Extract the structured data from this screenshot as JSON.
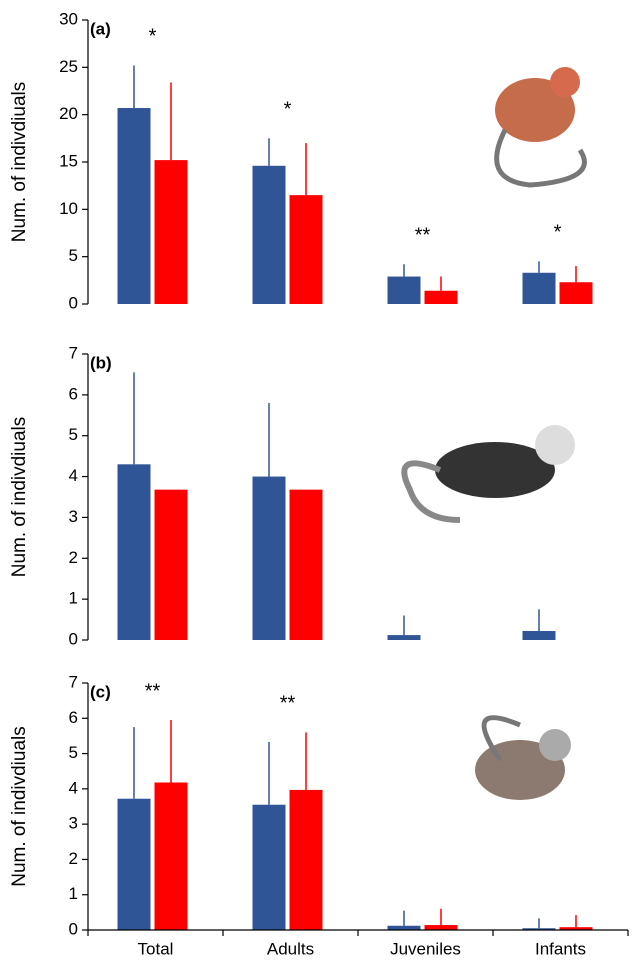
{
  "chart_data": [
    {
      "type": "bar",
      "panel_label": "(a)",
      "y_label": "Num. of indivdiuals",
      "ylim": [
        0,
        30
      ],
      "yticks": [
        0,
        5,
        10,
        15,
        20,
        25,
        30
      ],
      "series": [
        {
          "color": "#2f5597",
          "values": [
            20.7,
            14.6,
            2.9,
            3.3
          ],
          "errors": [
            4.5,
            2.9,
            1.3,
            1.2
          ]
        },
        {
          "color": "#ff0000",
          "values": [
            15.2,
            11.5,
            1.4,
            2.3
          ],
          "errors": [
            8.2,
            5.5,
            1.5,
            1.7
          ]
        }
      ],
      "annotations": [
        "*",
        "*",
        "**",
        "*"
      ]
    },
    {
      "type": "bar",
      "panel_label": "(b)",
      "y_label": "Num. of indivdiuals",
      "ylim": [
        0,
        7
      ],
      "yticks": [
        0,
        1,
        2,
        3,
        4,
        5,
        6,
        7
      ],
      "series": [
        {
          "color": "#2f5597",
          "values": [
            4.3,
            4.0,
            0.12,
            0.22
          ],
          "errors": [
            2.25,
            1.8,
            0.48,
            0.53
          ]
        },
        {
          "color": "#ff0000",
          "values": [
            3.68,
            3.68,
            0,
            0
          ],
          "errors": [
            null,
            null,
            null,
            null
          ]
        }
      ]
    },
    {
      "type": "bar",
      "panel_label": "(c)",
      "y_label": "Num. of indivdiuals",
      "ylim": [
        0,
        7
      ],
      "yticks": [
        0,
        1,
        2,
        3,
        4,
        5,
        6,
        7
      ],
      "categories": [
        "Total",
        "Adults",
        "Juveniles",
        "Infants"
      ],
      "series": [
        {
          "color": "#2f5597",
          "values": [
            3.72,
            3.55,
            0.12,
            0.05
          ],
          "errors": [
            2.03,
            1.78,
            0.43,
            0.28
          ]
        },
        {
          "color": "#ff0000",
          "values": [
            4.18,
            3.97,
            0.14,
            0.08
          ],
          "errors": [
            1.77,
            1.63,
            0.46,
            0.34
          ]
        }
      ],
      "annotations": [
        "**",
        "**",
        null,
        null
      ]
    }
  ]
}
